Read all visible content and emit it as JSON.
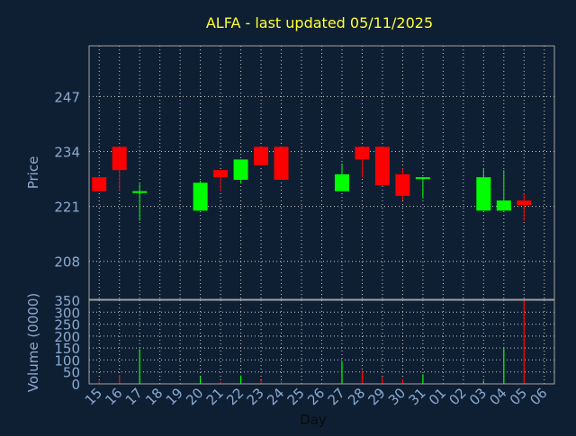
{
  "title": "ALFA - last updated 05/11/2025",
  "colors": {
    "background": "#0f1f33",
    "title": "#ffff33",
    "axis_text": "#8aaad0",
    "frame": "#a0a0a0",
    "grid": "#c8c8c8",
    "up": "#00ff00",
    "down": "#ff0000"
  },
  "chart_data": [
    {
      "type": "candlestick",
      "title": "ALFA - last updated 05/11/2025",
      "ylabel": "Price",
      "ylim": [
        199,
        259
      ],
      "yticks": [
        208,
        221,
        234,
        247
      ],
      "grid": true,
      "categories": [
        "15",
        "16",
        "17",
        "18",
        "19",
        "20",
        "21",
        "22",
        "23",
        "24",
        "25",
        "26",
        "27",
        "28",
        "29",
        "30",
        "31",
        "01",
        "02",
        "03",
        "04",
        "05",
        "06"
      ],
      "candles": [
        {
          "x": "15",
          "open": 227.9,
          "close": 224.6,
          "high": 227.9,
          "low": 224.6
        },
        {
          "x": "16",
          "open": 235.1,
          "close": 229.6,
          "high": 235.1,
          "low": 224.6
        },
        {
          "x": "17",
          "open": 224.6,
          "close": 224.6,
          "high": 226.4,
          "low": 217.6
        },
        {
          "x": "20",
          "open": 220.0,
          "close": 226.6,
          "high": 227.1,
          "low": 220.0
        },
        {
          "x": "21",
          "open": 229.6,
          "close": 227.9,
          "high": 229.6,
          "low": 224.6
        },
        {
          "x": "22",
          "open": 227.3,
          "close": 232.1,
          "high": 232.1,
          "low": 226.4
        },
        {
          "x": "23",
          "open": 235.1,
          "close": 230.7,
          "high": 235.1,
          "low": 230.7
        },
        {
          "x": "24",
          "open": 235.1,
          "close": 227.3,
          "high": 235.1,
          "low": 227.3
        },
        {
          "x": "27",
          "open": 224.6,
          "close": 228.6,
          "high": 231.2,
          "low": 224.6
        },
        {
          "x": "28",
          "open": 235.1,
          "close": 232.1,
          "high": 235.1,
          "low": 227.9
        },
        {
          "x": "29",
          "open": 235.1,
          "close": 226.0,
          "high": 235.1,
          "low": 226.0
        },
        {
          "x": "30",
          "open": 228.6,
          "close": 223.5,
          "high": 230.0,
          "low": 222.4
        },
        {
          "x": "31",
          "open": 227.9,
          "close": 227.9,
          "high": 227.9,
          "low": 222.9
        },
        {
          "x": "03",
          "open": 220.0,
          "close": 227.9,
          "high": 230.0,
          "low": 220.0
        },
        {
          "x": "04",
          "open": 220.0,
          "close": 222.4,
          "high": 229.6,
          "low": 220.0
        },
        {
          "x": "05",
          "open": 222.4,
          "close": 221.3,
          "high": 224.0,
          "low": 217.6
        }
      ]
    },
    {
      "type": "bar",
      "ylabel": "Volume (0000)",
      "xlabel": "Day",
      "ylim": [
        0,
        350
      ],
      "yticks": [
        0,
        50,
        100,
        150,
        200,
        250,
        300,
        350
      ],
      "grid": true,
      "categories": [
        "15",
        "16",
        "17",
        "18",
        "19",
        "20",
        "21",
        "22",
        "23",
        "24",
        "25",
        "26",
        "27",
        "28",
        "29",
        "30",
        "31",
        "01",
        "02",
        "03",
        "04",
        "05",
        "06"
      ],
      "bars": [
        {
          "x": "15",
          "value": 10,
          "direction": "down"
        },
        {
          "x": "16",
          "value": 38,
          "direction": "down"
        },
        {
          "x": "17",
          "value": 145,
          "direction": "up"
        },
        {
          "x": "20",
          "value": 30,
          "direction": "up"
        },
        {
          "x": "21",
          "value": 8,
          "direction": "down"
        },
        {
          "x": "22",
          "value": 35,
          "direction": "up"
        },
        {
          "x": "23",
          "value": 15,
          "direction": "down"
        },
        {
          "x": "24",
          "value": 10,
          "direction": "down"
        },
        {
          "x": "27",
          "value": 95,
          "direction": "up"
        },
        {
          "x": "28",
          "value": 55,
          "direction": "down"
        },
        {
          "x": "29",
          "value": 30,
          "direction": "down"
        },
        {
          "x": "30",
          "value": 20,
          "direction": "down"
        },
        {
          "x": "31",
          "value": 40,
          "direction": "up"
        },
        {
          "x": "03",
          "value": 12,
          "direction": "up"
        },
        {
          "x": "04",
          "value": 155,
          "direction": "up"
        },
        {
          "x": "05",
          "value": 350,
          "direction": "down"
        }
      ]
    }
  ]
}
